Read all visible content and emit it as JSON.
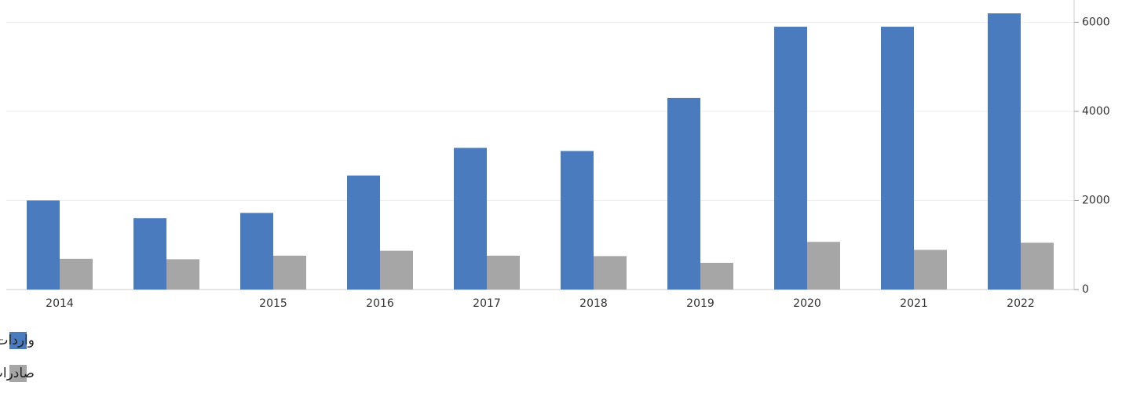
{
  "chart_data": {
    "type": "bar",
    "categories": [
      "2014",
      null,
      "2015",
      "2016",
      "2017",
      "2018",
      "2019",
      "2020",
      "2021",
      "2022"
    ],
    "series": [
      {
        "name": "واردات ارمنستان از ایران",
        "color": "#4a7bbf",
        "values": [
          2000,
          1600,
          1720,
          2560,
          3180,
          3110,
          4300,
          5900,
          5900,
          6200
        ]
      },
      {
        "name": "صادرات ارمنستان به ایران",
        "color": "#a6a6a6",
        "values": [
          690,
          680,
          760,
          870,
          760,
          750,
          600,
          1070,
          890,
          1050
        ]
      }
    ],
    "ylim": [
      0,
      6500
    ],
    "yticks": [
      0,
      2000,
      4000,
      6000
    ],
    "grid": true
  }
}
